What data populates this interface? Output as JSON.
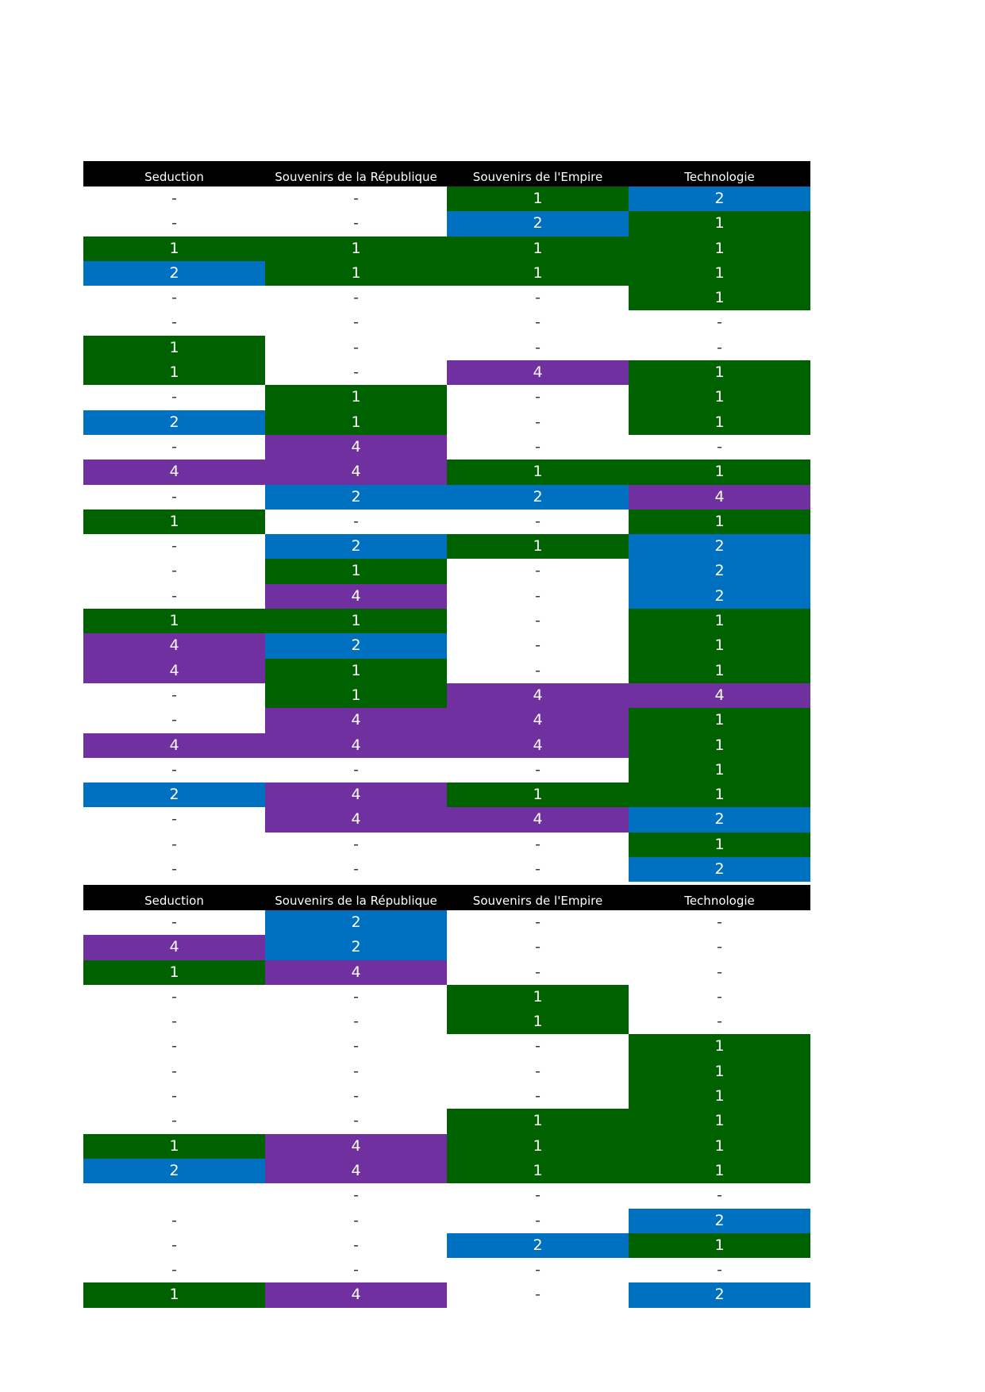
{
  "colors": {
    "header_bg": "#000000",
    "value_1": "#006100",
    "value_2": "#0070c0",
    "value_4": "#7030a0"
  },
  "tables": [
    {
      "headers": [
        "Seduction",
        "Souvenirs de la République",
        "Souvenirs de l'Empire",
        "Technologie"
      ],
      "rows": [
        [
          "-",
          "-",
          "1",
          "2"
        ],
        [
          "-",
          "-",
          "2",
          "1"
        ],
        [
          "1",
          "1",
          "1",
          "1"
        ],
        [
          "2",
          "1",
          "1",
          "1"
        ],
        [
          "-",
          "-",
          "-",
          "1"
        ],
        [
          "-",
          "-",
          "-",
          "-"
        ],
        [
          "1",
          "-",
          "-",
          "-"
        ],
        [
          "1",
          "-",
          "4",
          "1"
        ],
        [
          "-",
          "1",
          "-",
          "1"
        ],
        [
          "2",
          "1",
          "-",
          "1"
        ],
        [
          "-",
          "4",
          "-",
          "-"
        ],
        [
          "4",
          "4",
          "1",
          "1"
        ],
        [
          "-",
          "2",
          "2",
          "4"
        ],
        [
          "1",
          "-",
          "-",
          "1"
        ],
        [
          "-",
          "2",
          "1",
          "2"
        ],
        [
          "-",
          "1",
          "-",
          "2"
        ],
        [
          "-",
          "4",
          "-",
          "2"
        ],
        [
          "1",
          "1",
          "-",
          "1"
        ],
        [
          "4",
          "2",
          "-",
          "1"
        ],
        [
          "4",
          "1",
          "-",
          "1"
        ],
        [
          "-",
          "1",
          "4",
          "4"
        ],
        [
          "-",
          "4",
          "4",
          "1"
        ],
        [
          "4",
          "4",
          "4",
          "1"
        ],
        [
          "-",
          "-",
          "-",
          "1"
        ],
        [
          "2",
          "4",
          "1",
          "1"
        ],
        [
          "-",
          "4",
          "4",
          "2"
        ],
        [
          "-",
          "-",
          "-",
          "1"
        ],
        [
          "-",
          "-",
          "-",
          "2"
        ]
      ]
    },
    {
      "headers": [
        "Seduction",
        "Souvenirs de la République",
        "Souvenirs de l'Empire",
        "Technologie"
      ],
      "rows": [
        [
          "-",
          "2",
          "-",
          "-"
        ],
        [
          "4",
          "2",
          "-",
          "-"
        ],
        [
          "1",
          "4",
          "-",
          "-"
        ],
        [
          "-",
          "-",
          "1",
          "-"
        ],
        [
          "-",
          "-",
          "1",
          "-"
        ],
        [
          "-",
          "-",
          "-",
          "1"
        ],
        [
          "-",
          "-",
          "-",
          "1"
        ],
        [
          "-",
          "-",
          "-",
          "1"
        ],
        [
          "-",
          "-",
          "1",
          "1"
        ],
        [
          "1",
          "4",
          "1",
          "1"
        ],
        [
          "2",
          "4",
          "1",
          "1"
        ],
        [
          "",
          "-",
          "-",
          "-"
        ],
        [
          "-",
          "-",
          "-",
          "2"
        ],
        [
          "-",
          "-",
          "2",
          "1"
        ],
        [
          "-",
          "-",
          "-",
          "-"
        ],
        [
          "1",
          "4",
          "-",
          "2"
        ]
      ]
    }
  ]
}
